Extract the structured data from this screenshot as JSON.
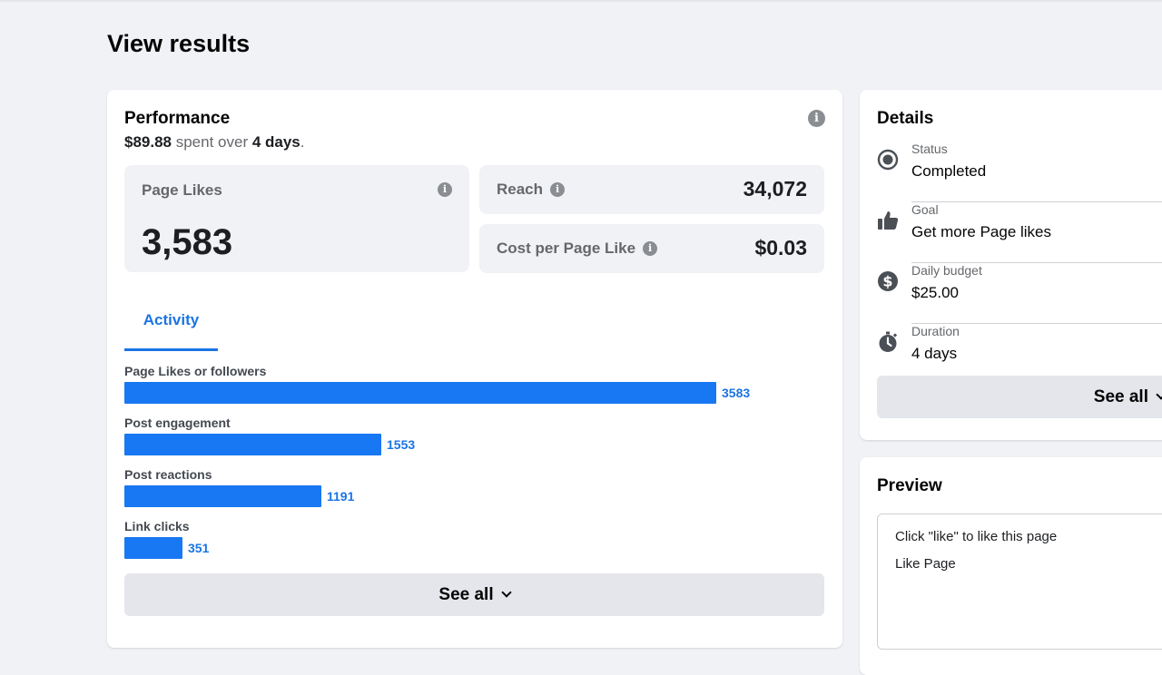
{
  "page": {
    "title": "View results"
  },
  "performance": {
    "title": "Performance",
    "spent": "$89.88",
    "spent_mid": " spent over ",
    "duration": "4 days",
    "spent_end": ".",
    "page_likes": {
      "label": "Page Likes",
      "value": "3,583"
    },
    "reach": {
      "label": "Reach",
      "value": "34,072"
    },
    "cost_per_like": {
      "label": "Cost per Page Like",
      "value": "$0.03"
    },
    "tab": "Activity",
    "see_all": "See all"
  },
  "chart_data": {
    "type": "bar",
    "orientation": "horizontal",
    "categories": [
      "Page Likes or followers",
      "Post engagement",
      "Post reactions",
      "Link clicks"
    ],
    "values": [
      3583,
      1553,
      1191,
      351
    ],
    "value_labels": [
      "3583",
      "1553",
      "1191",
      "351"
    ],
    "color": "#1877f2",
    "xlim": [
      0,
      4000
    ]
  },
  "details": {
    "title": "Details",
    "items": [
      {
        "icon": "radio-status-icon",
        "label": "Status",
        "value": "Completed"
      },
      {
        "icon": "thumbs-up-icon",
        "label": "Goal",
        "value": "Get more Page likes"
      },
      {
        "icon": "dollar-icon",
        "label": "Daily budget",
        "value": "$25.00"
      },
      {
        "icon": "stopwatch-icon",
        "label": "Duration",
        "value": "4 days"
      }
    ],
    "see_all": "See all"
  },
  "preview": {
    "title": "Preview",
    "line1": "Click \"like\" to like this page",
    "line2": "Like Page"
  },
  "colors": {
    "accent": "#1b74e4",
    "bar": "#1877f2",
    "muted": "#65676b",
    "background": "#f0f2f5"
  }
}
